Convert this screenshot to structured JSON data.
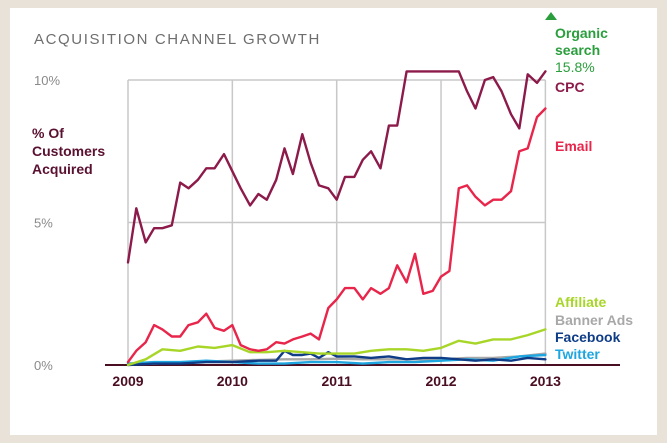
{
  "chart_data": {
    "type": "line",
    "title": "ACQUISITION CHANNEL GROWTH",
    "ylabel": "% Of Customers Acquired",
    "ylabel_lines": [
      "% Of",
      "Customers",
      "Acquired"
    ],
    "ylim": [
      0,
      10
    ],
    "yticks": [
      {
        "value": 10,
        "label": "10%"
      },
      {
        "value": 5,
        "label": "5%"
      },
      {
        "value": 0,
        "label": "0%"
      }
    ],
    "xlim": [
      2009,
      2013.6
    ],
    "xticks": [
      {
        "value": 2009,
        "label": "2009"
      },
      {
        "value": 2010,
        "label": "2010"
      },
      {
        "value": 2011,
        "label": "2011"
      },
      {
        "value": 2012,
        "label": "2012"
      },
      {
        "value": 2013,
        "label": "2013"
      }
    ],
    "grid": true,
    "legend": "right, labels at line ends",
    "series": [
      {
        "name": "Organic search",
        "value_label": "15.8%",
        "offscale": true,
        "color": "#2a9e3c",
        "x": [],
        "y": []
      },
      {
        "name": "CPC",
        "color": "#8c1a4a",
        "x": [
          2009.0,
          2009.08,
          2009.17,
          2009.25,
          2009.33,
          2009.42,
          2009.5,
          2009.58,
          2009.67,
          2009.75,
          2009.83,
          2009.92,
          2010.0,
          2010.08,
          2010.17,
          2010.25,
          2010.33,
          2010.42,
          2010.5,
          2010.58,
          2010.67,
          2010.75,
          2010.83,
          2010.92,
          2011.0,
          2011.08,
          2011.17,
          2011.25,
          2011.33,
          2011.42,
          2011.5,
          2011.58,
          2011.67,
          2011.75,
          2011.83,
          2011.92,
          2012.0,
          2012.08,
          2012.17,
          2012.25,
          2012.33,
          2012.42,
          2012.5,
          2012.58,
          2012.67,
          2012.75,
          2012.83,
          2012.92,
          2013.0
        ],
        "y": [
          3.6,
          5.5,
          4.3,
          4.8,
          4.8,
          4.9,
          6.4,
          6.2,
          6.5,
          6.9,
          6.9,
          7.4,
          6.8,
          6.2,
          5.6,
          6.0,
          5.8,
          6.5,
          7.6,
          6.7,
          8.1,
          7.1,
          6.3,
          6.2,
          5.8,
          6.6,
          6.6,
          7.2,
          7.5,
          6.9,
          8.4,
          8.4,
          10.5,
          10.5,
          10.8,
          11.6,
          11.7,
          10.9,
          10.4,
          9.6,
          9.0,
          10.0,
          10.1,
          9.6,
          8.8,
          8.3,
          10.2,
          9.9,
          10.9
        ]
      },
      {
        "name": "Email",
        "color": "#e8254a",
        "x": [
          2009.0,
          2009.08,
          2009.17,
          2009.25,
          2009.33,
          2009.42,
          2009.5,
          2009.58,
          2009.67,
          2009.75,
          2009.83,
          2009.92,
          2010.0,
          2010.08,
          2010.17,
          2010.25,
          2010.33,
          2010.42,
          2010.5,
          2010.58,
          2010.67,
          2010.75,
          2010.83,
          2010.92,
          2011.0,
          2011.08,
          2011.17,
          2011.25,
          2011.33,
          2011.42,
          2011.5,
          2011.58,
          2011.67,
          2011.75,
          2011.83,
          2011.92,
          2012.0,
          2012.08,
          2012.17,
          2012.25,
          2012.33,
          2012.42,
          2012.5,
          2012.58,
          2012.67,
          2012.75,
          2012.83,
          2012.92,
          2013.0
        ],
        "y": [
          0.1,
          0.5,
          0.8,
          1.4,
          1.25,
          1.0,
          1.0,
          1.4,
          1.5,
          1.8,
          1.3,
          1.2,
          1.4,
          0.7,
          0.55,
          0.5,
          0.55,
          0.8,
          0.75,
          0.9,
          1.0,
          1.1,
          0.9,
          2.0,
          2.3,
          2.7,
          2.7,
          2.3,
          2.7,
          2.5,
          2.7,
          3.5,
          2.9,
          3.9,
          2.5,
          2.6,
          3.1,
          3.3,
          6.2,
          6.3,
          5.9,
          5.6,
          5.8,
          5.8,
          6.1,
          7.5,
          7.6,
          8.7,
          9.0
        ]
      },
      {
        "name": "Affiliate",
        "color": "#a8d628",
        "x": [
          2009.0,
          2009.17,
          2009.33,
          2009.5,
          2009.67,
          2009.83,
          2010.0,
          2010.17,
          2010.33,
          2010.5,
          2010.67,
          2010.83,
          2011.0,
          2011.17,
          2011.33,
          2011.5,
          2011.67,
          2011.83,
          2012.0,
          2012.17,
          2012.33,
          2012.5,
          2012.67,
          2012.83,
          2013.0
        ],
        "y": [
          0.0,
          0.2,
          0.55,
          0.5,
          0.65,
          0.6,
          0.7,
          0.45,
          0.45,
          0.5,
          0.45,
          0.4,
          0.4,
          0.4,
          0.5,
          0.55,
          0.55,
          0.5,
          0.6,
          0.85,
          0.75,
          0.9,
          0.9,
          1.05,
          1.25
        ]
      },
      {
        "name": "Banner Ads",
        "color": "#a8a8a8",
        "x": [
          2009.0,
          2009.25,
          2009.5,
          2009.75,
          2010.0,
          2010.25,
          2010.5,
          2010.75,
          2011.0,
          2011.25,
          2011.5,
          2011.75,
          2012.0,
          2012.25,
          2012.5,
          2012.75,
          2013.0
        ],
        "y": [
          0.02,
          0.05,
          0.08,
          0.12,
          0.15,
          0.18,
          0.2,
          0.2,
          0.22,
          0.2,
          0.2,
          0.2,
          0.2,
          0.25,
          0.25,
          0.3,
          0.4
        ]
      },
      {
        "name": "Facebook",
        "color": "#0e3c86",
        "x": [
          2009.0,
          2009.25,
          2009.5,
          2009.75,
          2010.0,
          2010.25,
          2010.42,
          2010.5,
          2010.58,
          2010.67,
          2010.75,
          2010.83,
          2010.92,
          2011.0,
          2011.17,
          2011.33,
          2011.5,
          2011.67,
          2011.83,
          2012.0,
          2012.17,
          2012.33,
          2012.5,
          2012.67,
          2012.83,
          2013.0
        ],
        "y": [
          0.0,
          0.05,
          0.05,
          0.1,
          0.1,
          0.15,
          0.15,
          0.5,
          0.35,
          0.35,
          0.4,
          0.25,
          0.45,
          0.3,
          0.3,
          0.25,
          0.3,
          0.2,
          0.25,
          0.25,
          0.2,
          0.15,
          0.2,
          0.15,
          0.25,
          0.2
        ]
      },
      {
        "name": "Twitter",
        "color": "#1ea6e0",
        "x": [
          2009.0,
          2009.25,
          2009.5,
          2009.75,
          2010.0,
          2010.25,
          2010.5,
          2010.75,
          2011.0,
          2011.25,
          2011.5,
          2011.75,
          2012.0,
          2012.25,
          2012.5,
          2012.75,
          2013.0
        ],
        "y": [
          0.05,
          0.1,
          0.1,
          0.15,
          0.1,
          0.05,
          0.05,
          0.1,
          0.1,
          0.05,
          0.1,
          0.1,
          0.15,
          0.2,
          0.15,
          0.3,
          0.35
        ]
      }
    ]
  }
}
